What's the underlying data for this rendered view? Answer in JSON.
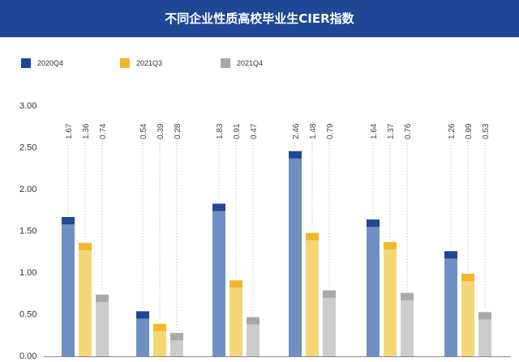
{
  "chart_data": {
    "type": "bar",
    "title": "不同企业性质高校毕业生CIER指数",
    "categories": [
      "",
      "",
      "",
      "",
      "",
      ""
    ],
    "series": [
      {
        "name": "2020Q4",
        "values": [
          1.67,
          0.54,
          1.83,
          2.46,
          1.64,
          1.26
        ],
        "color": "#1f4796",
        "body_color": "#6f8fc4"
      },
      {
        "name": "2021Q3",
        "values": [
          1.36,
          0.39,
          0.91,
          1.48,
          1.37,
          0.99
        ],
        "color": "#f0b82a",
        "body_color": "#f5d677"
      },
      {
        "name": "2021Q4",
        "values": [
          0.74,
          0.28,
          0.47,
          0.79,
          0.76,
          0.53
        ],
        "color": "#a9a9a9",
        "body_color": "#cccccc"
      }
    ],
    "labels": [
      [
        "1.67",
        "1.36",
        "0.74"
      ],
      [
        "0.54",
        "0.39",
        "0.28"
      ],
      [
        "1.83",
        "0.91",
        "0.47"
      ],
      [
        "2.46",
        "1.48",
        "0.79"
      ],
      [
        "1.64",
        "1.37",
        "0.76"
      ],
      [
        "1.26",
        "0.99",
        "0.53"
      ]
    ],
    "yticks": [
      "0.00",
      "0.50",
      "1.00",
      "1.50",
      "2.00",
      "2.50",
      "3.00"
    ],
    "ylim": [
      0,
      3
    ],
    "grid": false,
    "legend": "top-left"
  }
}
